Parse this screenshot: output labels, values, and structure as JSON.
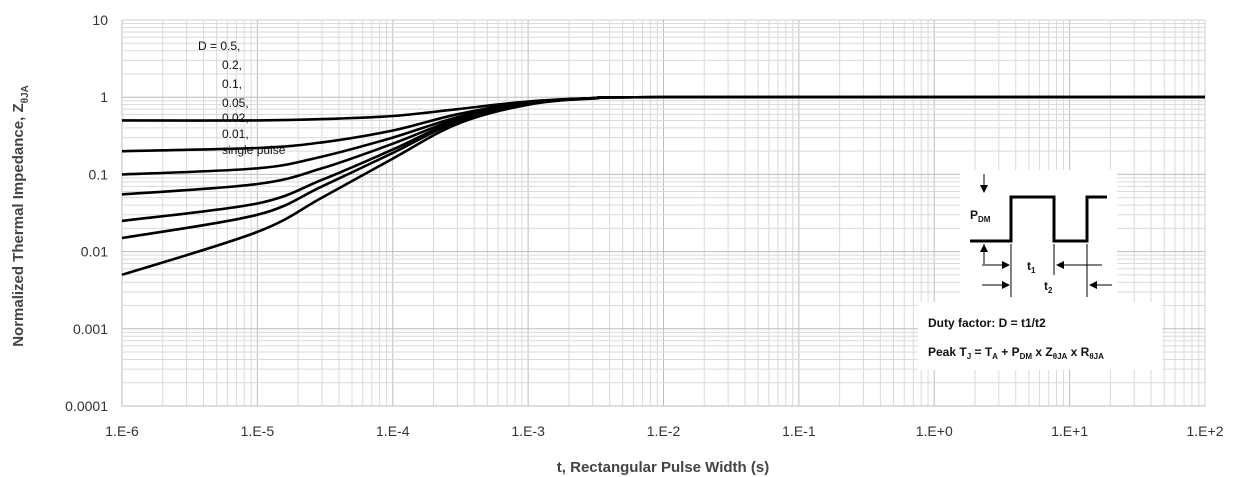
{
  "chart_data": {
    "type": "line",
    "xlabel": "t, Rectangular Pulse Width (s)",
    "ylabel": "Normalized Thermal Impedance, Z",
    "ylabel_sub": "θJA",
    "xscale": "log",
    "yscale": "log",
    "xlim": [
      1e-06,
      100
    ],
    "ylim": [
      0.0001,
      10
    ],
    "grid": true,
    "x_ticks": [
      {
        "value": 1e-06,
        "label": "1.E-6"
      },
      {
        "value": 1e-05,
        "label": "1.E-5"
      },
      {
        "value": 0.0001,
        "label": "1.E-4"
      },
      {
        "value": 0.001,
        "label": "1.E-3"
      },
      {
        "value": 0.01,
        "label": "1.E-2"
      },
      {
        "value": 0.1,
        "label": "1.E-1"
      },
      {
        "value": 1,
        "label": "1.E+0"
      },
      {
        "value": 10,
        "label": "1.E+1"
      },
      {
        "value": 100,
        "label": "1.E+2"
      }
    ],
    "y_ticks": [
      {
        "value": 10,
        "label": "10"
      },
      {
        "value": 1,
        "label": "1"
      },
      {
        "value": 0.1,
        "label": "0.1"
      },
      {
        "value": 0.01,
        "label": "0.01"
      },
      {
        "value": 0.001,
        "label": "0.001"
      },
      {
        "value": 0.0001,
        "label": "0.0001"
      }
    ],
    "legend_lines": [
      "D = 0.5,",
      "0.2,",
      "0.1,",
      "0.05,",
      "0.02,",
      "0.01,",
      "single pulse"
    ],
    "legend_position": "top-left",
    "series": [
      {
        "x": [
          1e-06,
          1e-05,
          3e-05,
          0.0001,
          0.0003,
          0.001,
          0.003,
          0.01,
          100
        ],
        "y": [
          0.5,
          0.5,
          0.52,
          0.57,
          0.7,
          0.88,
          0.97,
          1.0,
          1.0
        ]
      },
      {
        "x": [
          1e-06,
          1e-05,
          3e-05,
          0.0001,
          0.0003,
          0.001,
          0.003,
          0.01,
          100
        ],
        "y": [
          0.2,
          0.22,
          0.26,
          0.37,
          0.6,
          0.86,
          0.97,
          1.0,
          1.0
        ]
      },
      {
        "x": [
          1e-06,
          1e-05,
          3e-05,
          0.0001,
          0.0003,
          0.001,
          0.003,
          0.01,
          100
        ],
        "y": [
          0.1,
          0.12,
          0.17,
          0.3,
          0.55,
          0.85,
          0.97,
          1.0,
          1.0
        ]
      },
      {
        "x": [
          1e-06,
          1e-05,
          3e-05,
          0.0001,
          0.0003,
          0.001,
          0.003,
          0.01,
          100
        ],
        "y": [
          0.055,
          0.075,
          0.12,
          0.25,
          0.52,
          0.84,
          0.97,
          1.0,
          1.0
        ]
      },
      {
        "x": [
          1e-06,
          1e-05,
          3e-05,
          0.0001,
          0.0003,
          0.001,
          0.003,
          0.01,
          100
        ],
        "y": [
          0.025,
          0.042,
          0.085,
          0.21,
          0.5,
          0.83,
          0.97,
          1.0,
          1.0
        ]
      },
      {
        "x": [
          1e-06,
          1e-05,
          3e-05,
          0.0001,
          0.0003,
          0.001,
          0.003,
          0.01,
          100
        ],
        "y": [
          0.015,
          0.03,
          0.07,
          0.19,
          0.48,
          0.82,
          0.97,
          1.0,
          1.0
        ]
      },
      {
        "x": [
          1e-06,
          1e-05,
          3e-05,
          0.0001,
          0.0003,
          0.001,
          0.003,
          0.01,
          100
        ],
        "y": [
          0.005,
          0.018,
          0.05,
          0.16,
          0.45,
          0.8,
          0.96,
          1.0,
          1.0
        ]
      }
    ],
    "line_color": "#000000",
    "inset": {
      "pdm_label": "P",
      "pdm_sub": "DM",
      "t1_label": "t",
      "t1_sub": "1",
      "t2_label": "t",
      "t2_sub": "2",
      "duty_factor_text": "Duty factor: D = t1/t2",
      "peak_prefix": "Peak T",
      "peak_tj_sub": "J",
      "peak_eq1": " = T",
      "peak_ta_sub": "A",
      "peak_eq2": " + P",
      "peak_pdm_sub": "DM",
      "peak_eq3": " x Z",
      "peak_z_sub": "θJA",
      "peak_eq4": " x R",
      "peak_r_sub": "θJA"
    }
  }
}
